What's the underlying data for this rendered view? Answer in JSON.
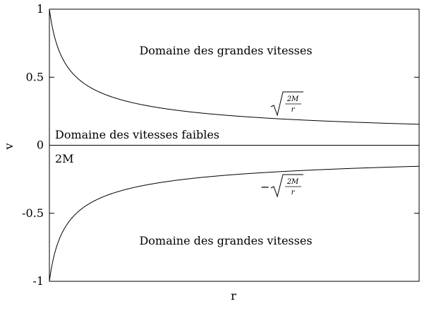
{
  "chart_data": {
    "type": "line",
    "title": "",
    "xlabel": "r",
    "ylabel": "v",
    "xlim": [
      2,
      84
    ],
    "ylim": [
      -1,
      1
    ],
    "yticks": [
      {
        "value": 1,
        "label": "1"
      },
      {
        "value": 0.5,
        "label": "0.5"
      },
      {
        "value": 0,
        "label": "0"
      },
      {
        "value": -0.5,
        "label": "-0.5"
      },
      {
        "value": -1,
        "label": "-1"
      }
    ],
    "grid": false,
    "legend": "none",
    "series": [
      {
        "function": "sqrt(2M/r)",
        "M": 1,
        "x": [
          2,
          2.2,
          2.5,
          3,
          3.5,
          4,
          5,
          6,
          8,
          10,
          13,
          17,
          22,
          30,
          40,
          50,
          60,
          70,
          84
        ],
        "y": [
          1.0,
          0.953,
          0.894,
          0.816,
          0.756,
          0.707,
          0.632,
          0.577,
          0.5,
          0.447,
          0.392,
          0.343,
          0.302,
          0.258,
          0.224,
          0.2,
          0.183,
          0.169,
          0.154
        ],
        "color": "#000000"
      },
      {
        "function": "-sqrt(2M/r)",
        "M": 1,
        "x": [
          2,
          2.2,
          2.5,
          3,
          3.5,
          4,
          5,
          6,
          8,
          10,
          13,
          17,
          22,
          30,
          40,
          50,
          60,
          70,
          84
        ],
        "y": [
          -1.0,
          -0.953,
          -0.894,
          -0.816,
          -0.756,
          -0.707,
          -0.632,
          -0.577,
          -0.5,
          -0.447,
          -0.392,
          -0.343,
          -0.302,
          -0.258,
          -0.224,
          -0.2,
          -0.183,
          -0.169,
          -0.154
        ],
        "color": "#000000"
      }
    ],
    "annotations": {
      "upper_region": "Domaine des grandes vitesses",
      "slow_region": "Domaine des vitesses faibles",
      "lower_region": "Domaine des grandes vitesses",
      "horizon_label": "2M",
      "upper_curve_label": {
        "numerator": "2M",
        "denominator": "r",
        "sign": ""
      },
      "lower_curve_label": {
        "numerator": "2M",
        "denominator": "r",
        "sign": "−"
      }
    }
  }
}
